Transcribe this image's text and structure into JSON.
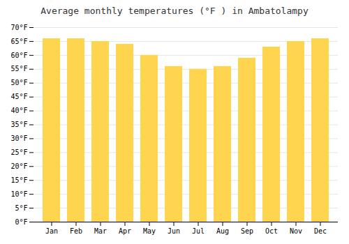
{
  "chart_data": {
    "type": "bar",
    "title": "Average monthly temperatures (°F ) in Ambatolampy",
    "categories": [
      "Jan",
      "Feb",
      "Mar",
      "Apr",
      "May",
      "Jun",
      "Jul",
      "Aug",
      "Sep",
      "Oct",
      "Nov",
      "Dec"
    ],
    "values": [
      66,
      66,
      65,
      64,
      60,
      56,
      55,
      56,
      59,
      63,
      65,
      66
    ],
    "color": "#FFD54F",
    "ylim": [
      0,
      70
    ],
    "yticks": [
      {
        "value": 0,
        "label": "0°F"
      },
      {
        "value": 5,
        "label": "5°F"
      },
      {
        "value": 10,
        "label": "10°F"
      },
      {
        "value": 15,
        "label": "15°F"
      },
      {
        "value": 20,
        "label": "20°F"
      },
      {
        "value": 25,
        "label": "25°F"
      },
      {
        "value": 30,
        "label": "30°F"
      },
      {
        "value": 35,
        "label": "35°F"
      },
      {
        "value": 40,
        "label": "40°F"
      },
      {
        "value": 45,
        "label": "45°F"
      },
      {
        "value": 50,
        "label": "50°F"
      },
      {
        "value": 55,
        "label": "55°F"
      },
      {
        "value": 60,
        "label": "60°F"
      },
      {
        "value": 65,
        "label": "65°F"
      },
      {
        "value": 70,
        "label": "70°F"
      }
    ],
    "grid": true
  }
}
